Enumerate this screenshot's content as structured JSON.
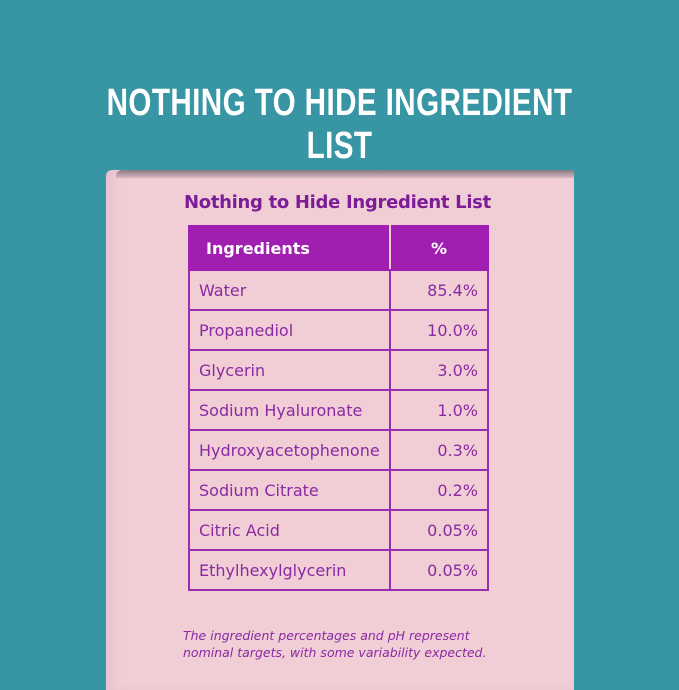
{
  "headline": "NOTHING TO HIDE INGREDIENT LIST",
  "panel": {
    "title": "Nothing to Hide Ingredient List",
    "headers": [
      "Ingredients",
      "%"
    ],
    "rows": [
      {
        "name": "Water",
        "pct": "85.4%"
      },
      {
        "name": "Propanediol",
        "pct": "10.0%"
      },
      {
        "name": "Glycerin",
        "pct": "3.0%"
      },
      {
        "name": "Sodium Hyaluronate",
        "pct": "1.0%"
      },
      {
        "name": "Hydroxyacetophenone",
        "pct": "0.3%"
      },
      {
        "name": "Sodium Citrate",
        "pct": "0.2%"
      },
      {
        "name": "Citric Acid",
        "pct": "0.05%"
      },
      {
        "name": "Ethylhexylglycerin",
        "pct": "0.05%"
      }
    ],
    "note_line1": "The ingredient percentages and pH represent",
    "note_line2": "nominal targets, with some variability expected."
  },
  "colors": {
    "background": "#3895a4",
    "box": "#f1cdd6",
    "accent": "#a11fb0"
  }
}
